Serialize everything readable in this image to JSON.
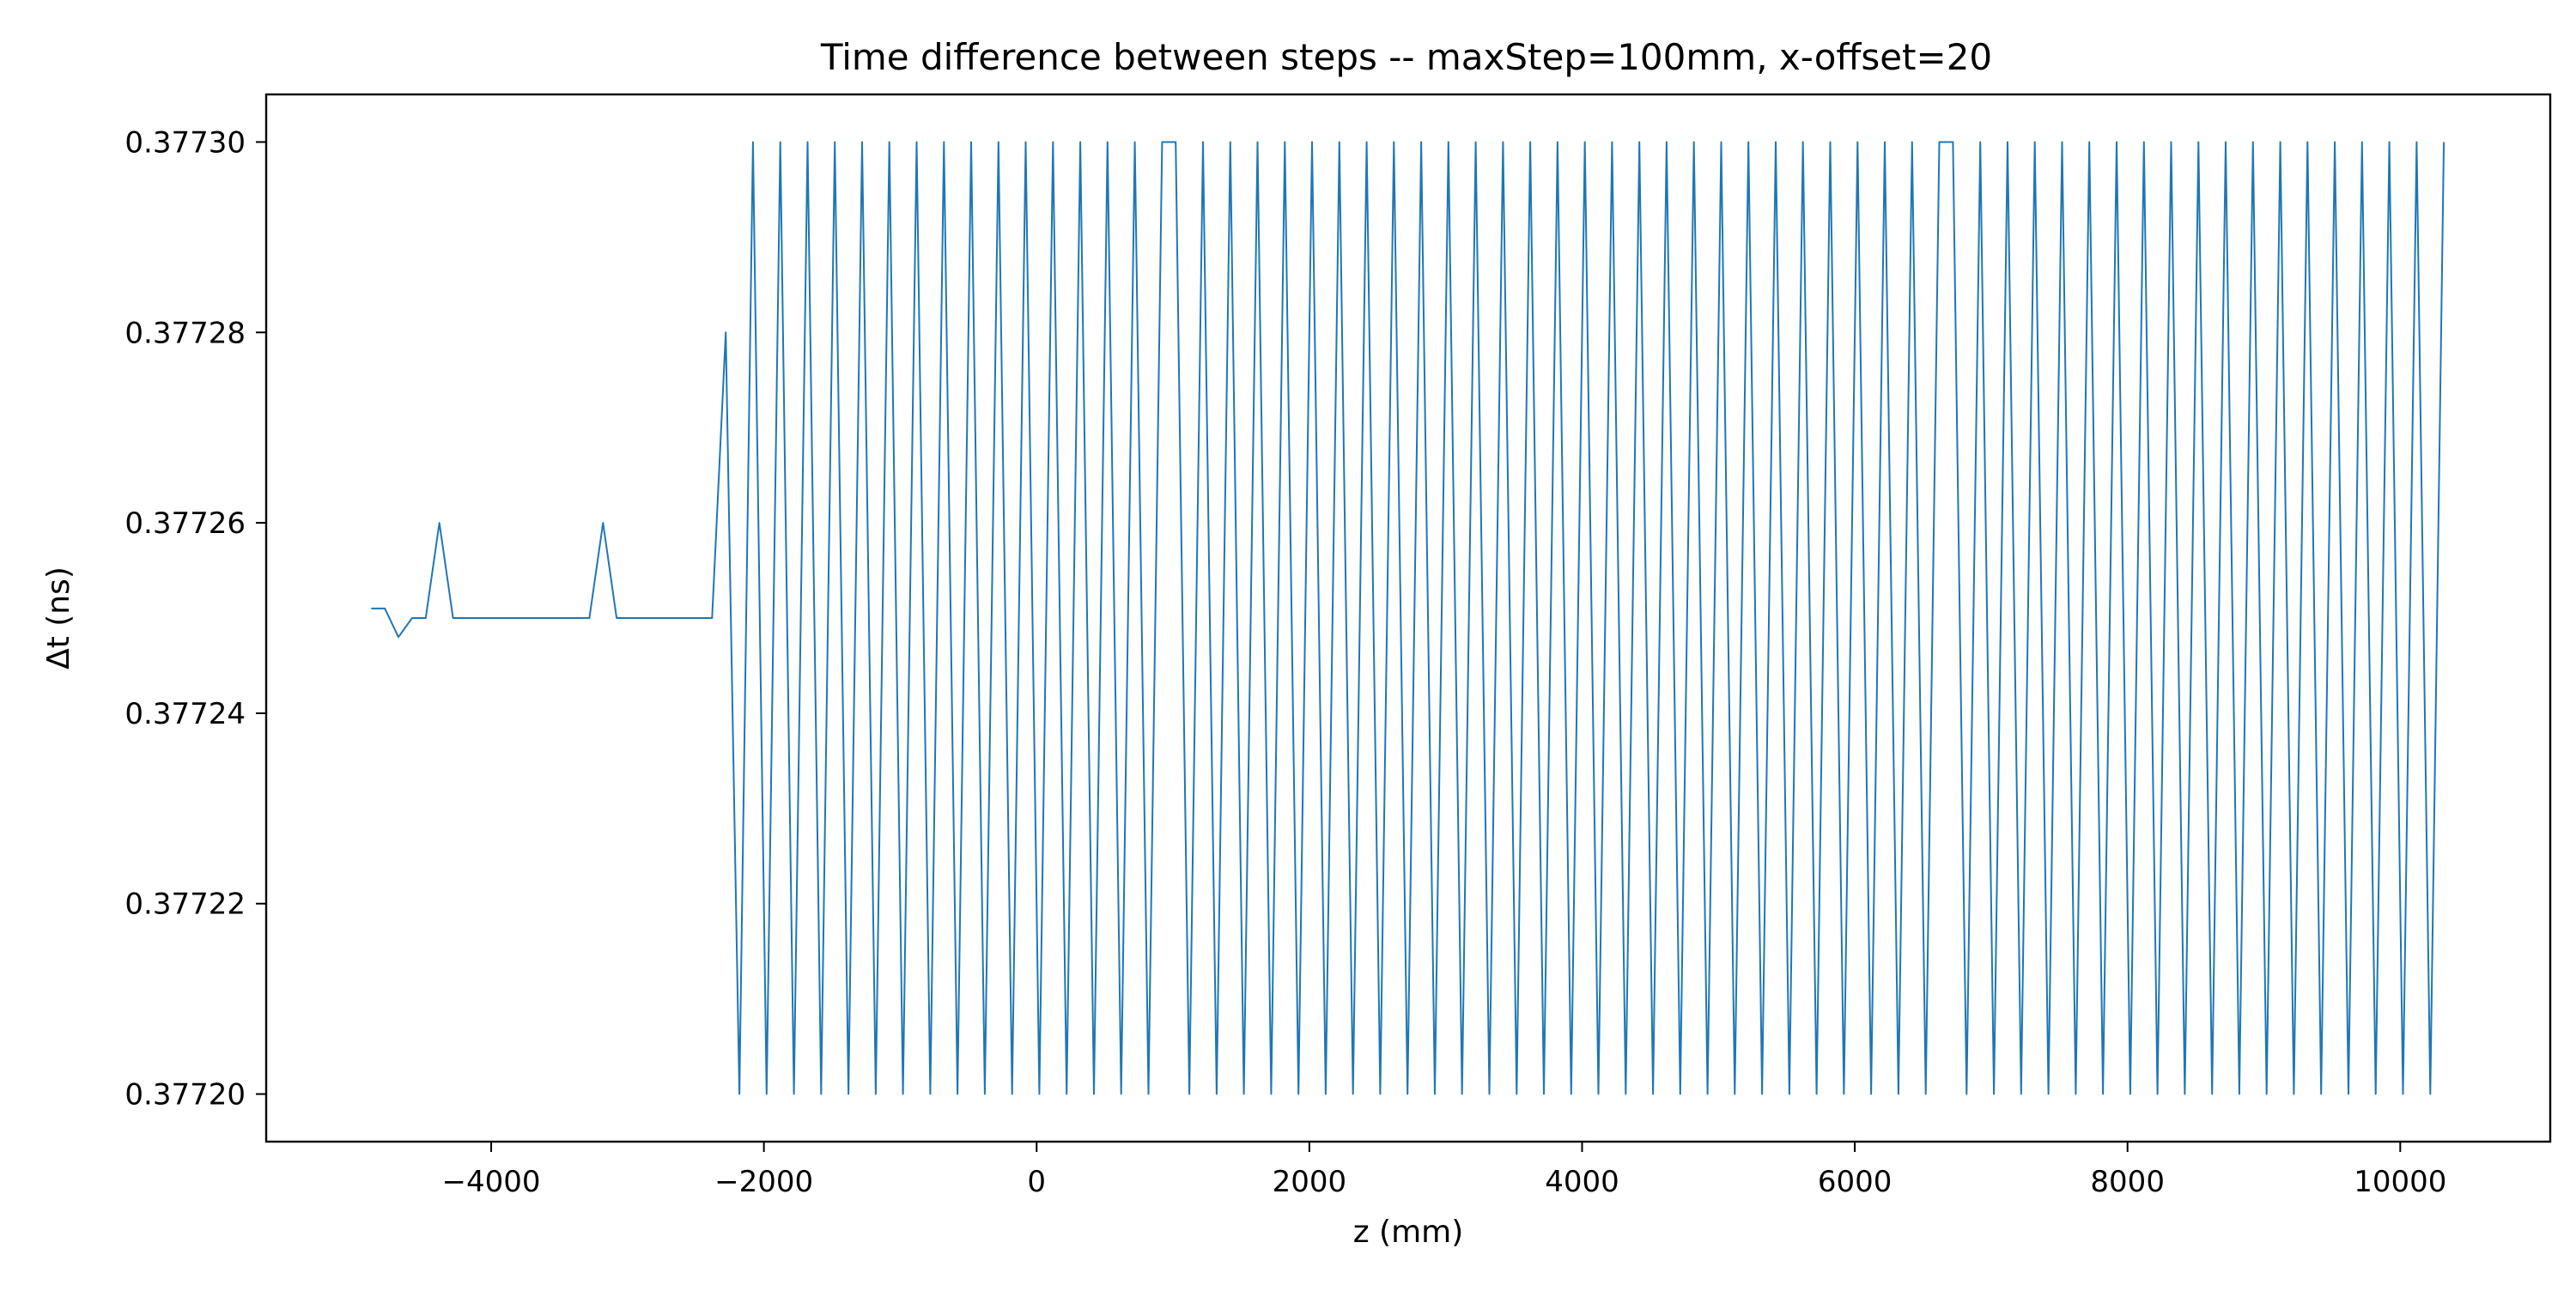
{
  "chart_data": {
    "type": "line",
    "title": "Time difference between steps -- maxStep=100mm, x-offset=20",
    "xlabel": "z (mm)",
    "ylabel": "Δt (ns)",
    "xlim": [
      -5650,
      11100
    ],
    "ylim": [
      0.377195,
      0.377305
    ],
    "x_ticks": [
      {
        "value": -4000,
        "label": "−4000"
      },
      {
        "value": -2000,
        "label": "−2000"
      },
      {
        "value": 0,
        "label": "0"
      },
      {
        "value": 2000,
        "label": "2000"
      },
      {
        "value": 4000,
        "label": "4000"
      },
      {
        "value": 6000,
        "label": "6000"
      },
      {
        "value": 8000,
        "label": "8000"
      },
      {
        "value": 10000,
        "label": "10000"
      }
    ],
    "y_ticks": [
      {
        "value": 0.3772,
        "label": "0.37720"
      },
      {
        "value": 0.37722,
        "label": "0.37722"
      },
      {
        "value": 0.37724,
        "label": "0.37724"
      },
      {
        "value": 0.37726,
        "label": "0.37726"
      },
      {
        "value": 0.37728,
        "label": "0.37728"
      },
      {
        "value": 0.3773,
        "label": "0.37730"
      }
    ],
    "grid": false,
    "line_color": "#1f77b4",
    "series": [
      {
        "values": [
          [
            -4880,
            0.377251
          ],
          [
            -4780,
            0.377251
          ],
          [
            -4680,
            0.377248
          ],
          [
            -4580,
            0.37725
          ],
          [
            -4480,
            0.37725
          ],
          [
            -4380,
            0.37726
          ],
          [
            -4280,
            0.37725
          ],
          [
            -4180,
            0.37725
          ],
          [
            -4080,
            0.37725
          ],
          [
            -3980,
            0.37725
          ],
          [
            -3880,
            0.37725
          ],
          [
            -3780,
            0.37725
          ],
          [
            -3680,
            0.37725
          ],
          [
            -3580,
            0.37725
          ],
          [
            -3480,
            0.37725
          ],
          [
            -3380,
            0.37725
          ],
          [
            -3280,
            0.37725
          ],
          [
            -3180,
            0.37726
          ],
          [
            -3080,
            0.37725
          ],
          [
            -2980,
            0.37725
          ],
          [
            -2880,
            0.37725
          ],
          [
            -2780,
            0.37725
          ],
          [
            -2680,
            0.37725
          ],
          [
            -2580,
            0.37725
          ],
          [
            -2480,
            0.37725
          ],
          [
            -2380,
            0.37725
          ],
          [
            -2280,
            0.37728
          ],
          [
            -2180,
            0.3772
          ],
          [
            -2080,
            0.3773
          ],
          [
            -1980,
            0.3772
          ],
          [
            -1880,
            0.3773
          ],
          [
            -1780,
            0.3772
          ],
          [
            -1680,
            0.3773
          ],
          [
            -1580,
            0.3772
          ],
          [
            -1480,
            0.3773
          ],
          [
            -1380,
            0.3772
          ],
          [
            -1280,
            0.3773
          ],
          [
            -1180,
            0.3772
          ],
          [
            -1080,
            0.3773
          ],
          [
            -980,
            0.3772
          ],
          [
            -880,
            0.3773
          ],
          [
            -780,
            0.3772
          ],
          [
            -680,
            0.3773
          ],
          [
            -580,
            0.3772
          ],
          [
            -480,
            0.3773
          ],
          [
            -380,
            0.3772
          ],
          [
            -280,
            0.3773
          ],
          [
            -180,
            0.3772
          ],
          [
            -80,
            0.3773
          ],
          [
            20,
            0.3772
          ],
          [
            120,
            0.3773
          ],
          [
            220,
            0.3772
          ],
          [
            320,
            0.3773
          ],
          [
            420,
            0.3772
          ],
          [
            520,
            0.3773
          ],
          [
            620,
            0.3772
          ],
          [
            720,
            0.3773
          ],
          [
            820,
            0.3772
          ],
          [
            920,
            0.3773
          ],
          [
            1020,
            0.3773
          ],
          [
            1120,
            0.3772
          ],
          [
            1220,
            0.3773
          ],
          [
            1320,
            0.3772
          ],
          [
            1420,
            0.3773
          ],
          [
            1520,
            0.3772
          ],
          [
            1620,
            0.3773
          ],
          [
            1720,
            0.3772
          ],
          [
            1820,
            0.3773
          ],
          [
            1920,
            0.3772
          ],
          [
            2020,
            0.3773
          ],
          [
            2120,
            0.3772
          ],
          [
            2220,
            0.3773
          ],
          [
            2320,
            0.3772
          ],
          [
            2420,
            0.3773
          ],
          [
            2520,
            0.3772
          ],
          [
            2620,
            0.3773
          ],
          [
            2720,
            0.3772
          ],
          [
            2820,
            0.3773
          ],
          [
            2920,
            0.3772
          ],
          [
            3020,
            0.3773
          ],
          [
            3120,
            0.3772
          ],
          [
            3220,
            0.3773
          ],
          [
            3320,
            0.3772
          ],
          [
            3420,
            0.3773
          ],
          [
            3520,
            0.3772
          ],
          [
            3620,
            0.3773
          ],
          [
            3720,
            0.3772
          ],
          [
            3820,
            0.3773
          ],
          [
            3920,
            0.3772
          ],
          [
            4020,
            0.3773
          ],
          [
            4120,
            0.3772
          ],
          [
            4220,
            0.3773
          ],
          [
            4320,
            0.3772
          ],
          [
            4420,
            0.3773
          ],
          [
            4520,
            0.3772
          ],
          [
            4620,
            0.3773
          ],
          [
            4720,
            0.3772
          ],
          [
            4820,
            0.3773
          ],
          [
            4920,
            0.3772
          ],
          [
            5020,
            0.3773
          ],
          [
            5120,
            0.3772
          ],
          [
            5220,
            0.3773
          ],
          [
            5320,
            0.3772
          ],
          [
            5420,
            0.3773
          ],
          [
            5520,
            0.3772
          ],
          [
            5620,
            0.3773
          ],
          [
            5720,
            0.3772
          ],
          [
            5820,
            0.3773
          ],
          [
            5920,
            0.3772
          ],
          [
            6020,
            0.3773
          ],
          [
            6120,
            0.3772
          ],
          [
            6220,
            0.3773
          ],
          [
            6320,
            0.3772
          ],
          [
            6420,
            0.3773
          ],
          [
            6520,
            0.3772
          ],
          [
            6620,
            0.3773
          ],
          [
            6720,
            0.3773
          ],
          [
            6820,
            0.3772
          ],
          [
            6920,
            0.3773
          ],
          [
            7020,
            0.3772
          ],
          [
            7120,
            0.3773
          ],
          [
            7220,
            0.3772
          ],
          [
            7320,
            0.3773
          ],
          [
            7420,
            0.3772
          ],
          [
            7520,
            0.3773
          ],
          [
            7620,
            0.3772
          ],
          [
            7720,
            0.3773
          ],
          [
            7820,
            0.3772
          ],
          [
            7920,
            0.3773
          ],
          [
            8020,
            0.3772
          ],
          [
            8120,
            0.3773
          ],
          [
            8220,
            0.3772
          ],
          [
            8320,
            0.3773
          ],
          [
            8420,
            0.3772
          ],
          [
            8520,
            0.3773
          ],
          [
            8620,
            0.3772
          ],
          [
            8720,
            0.3773
          ],
          [
            8820,
            0.3772
          ],
          [
            8920,
            0.3773
          ],
          [
            9020,
            0.3772
          ],
          [
            9120,
            0.3773
          ],
          [
            9220,
            0.3772
          ],
          [
            9320,
            0.3773
          ],
          [
            9420,
            0.3772
          ],
          [
            9520,
            0.3773
          ],
          [
            9620,
            0.3772
          ],
          [
            9720,
            0.3773
          ],
          [
            9820,
            0.3772
          ],
          [
            9920,
            0.3773
          ],
          [
            10020,
            0.3772
          ],
          [
            10120,
            0.3773
          ],
          [
            10220,
            0.3772
          ],
          [
            10320,
            0.3773
          ]
        ]
      }
    ]
  }
}
